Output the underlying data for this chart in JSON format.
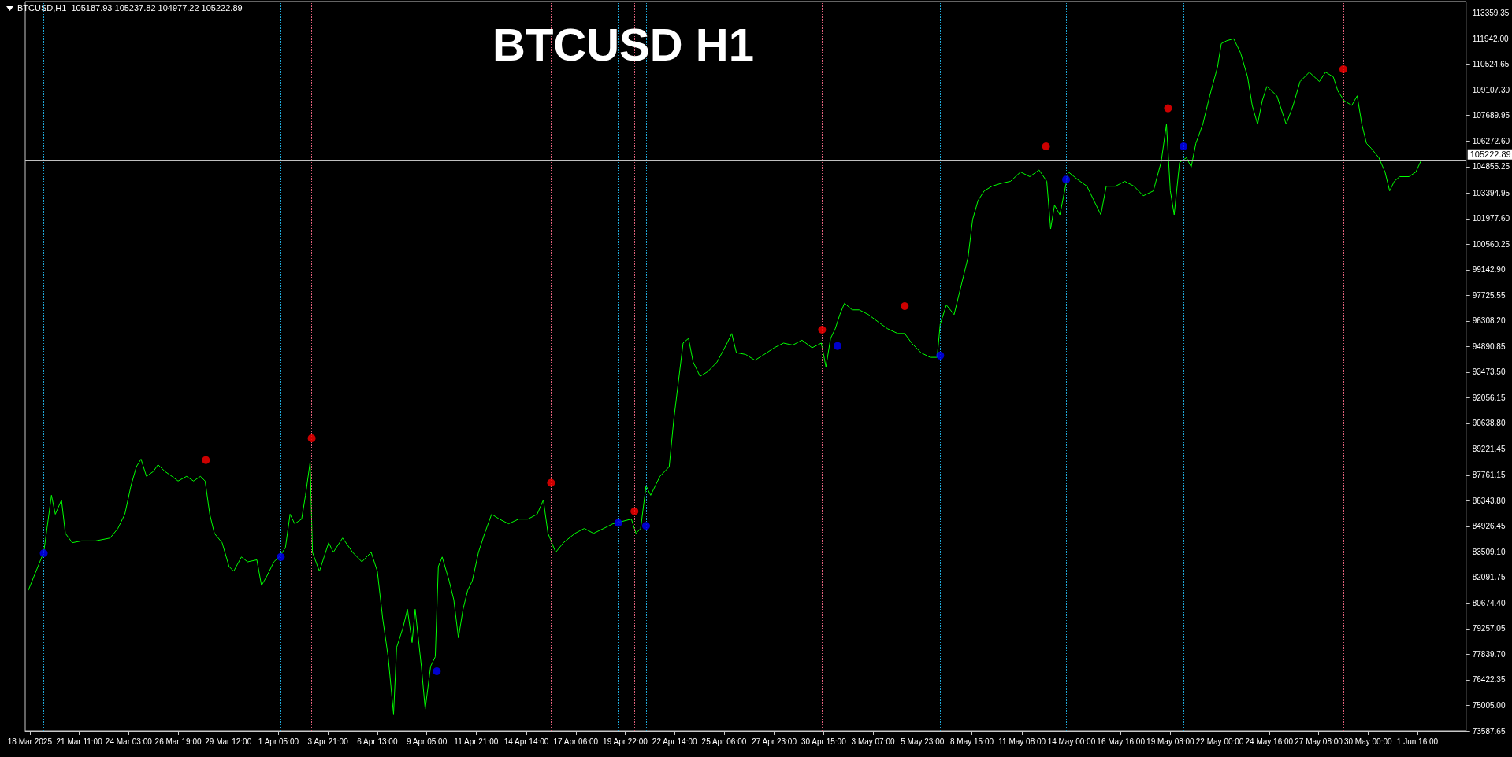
{
  "chart_data": {
    "type": "line",
    "title": "BTCUSD H1",
    "annotations": [
      "BTCUSD,H1  105187.93 105237.82 104977.22 105222.89"
    ],
    "xlim": [
      "2025-03-18T13:00",
      "2025-06-04T07:00"
    ],
    "xticks": [
      {
        "value": "2025-03-18T19:00",
        "label": "18 Mar 2025"
      },
      {
        "value": "2025-03-21T11:00",
        "label": "21 Mar 11:00"
      },
      {
        "value": "2025-03-24T03:00",
        "label": "24 Mar 03:00"
      },
      {
        "value": "2025-03-26T19:00",
        "label": "26 Mar 19:00"
      },
      {
        "value": "2025-03-29T12:00",
        "label": "29 Mar 12:00"
      },
      {
        "value": "2025-04-01T05:00",
        "label": "1 Apr 05:00"
      },
      {
        "value": "2025-04-03T21:00",
        "label": "3 Apr 21:00"
      },
      {
        "value": "2025-04-06T13:00",
        "label": "6 Apr 13:00"
      },
      {
        "value": "2025-04-09T05:00",
        "label": "9 Apr 05:00"
      },
      {
        "value": "2025-04-11T21:00",
        "label": "11 Apr 21:00"
      },
      {
        "value": "2025-04-14T14:00",
        "label": "14 Apr 14:00"
      },
      {
        "value": "2025-04-17T06:00",
        "label": "17 Apr 06:00"
      },
      {
        "value": "2025-04-19T22:00",
        "label": "19 Apr 22:00"
      },
      {
        "value": "2025-04-22T14:00",
        "label": "22 Apr 14:00"
      },
      {
        "value": "2025-04-25T06:00",
        "label": "25 Apr 06:00"
      },
      {
        "value": "2025-04-27T23:00",
        "label": "27 Apr 23:00"
      },
      {
        "value": "2025-04-30T15:00",
        "label": "30 Apr 15:00"
      },
      {
        "value": "2025-05-03T07:00",
        "label": "3 May 07:00"
      },
      {
        "value": "2025-05-05T23:00",
        "label": "5 May 23:00"
      },
      {
        "value": "2025-05-08T15:00",
        "label": "8 May 15:00"
      },
      {
        "value": "2025-05-11T08:00",
        "label": "11 May 08:00"
      },
      {
        "value": "2025-05-14T00:00",
        "label": "14 May 00:00"
      },
      {
        "value": "2025-05-16T16:00",
        "label": "16 May 16:00"
      },
      {
        "value": "2025-05-19T08:00",
        "label": "19 May 08:00"
      },
      {
        "value": "2025-05-22T00:00",
        "label": "22 May 00:00"
      },
      {
        "value": "2025-05-24T16:00",
        "label": "24 May 16:00"
      },
      {
        "value": "2025-05-27T08:00",
        "label": "27 May 08:00"
      },
      {
        "value": "2025-05-30T00:00",
        "label": "30 May 00:00"
      },
      {
        "value": "2025-06-01T16:00",
        "label": "1 Jun 16:00"
      }
    ],
    "ylim": [
      73587.65,
      114000
    ],
    "yticks": [
      {
        "value": 73587.65,
        "label": "73587.65"
      },
      {
        "value": 75005,
        "label": "75005.00"
      },
      {
        "value": 76422.35,
        "label": "76422.35"
      },
      {
        "value": 77839.7,
        "label": "77839.70"
      },
      {
        "value": 79257.05,
        "label": "79257.05"
      },
      {
        "value": 80674.4,
        "label": "80674.40"
      },
      {
        "value": 82091.75,
        "label": "82091.75"
      },
      {
        "value": 83509.1,
        "label": "83509.10"
      },
      {
        "value": 84926.45,
        "label": "84926.45"
      },
      {
        "value": 86343.8,
        "label": "86343.80"
      },
      {
        "value": 87761.15,
        "label": "87761.15"
      },
      {
        "value": 89221.45,
        "label": "89221.45"
      },
      {
        "value": 90638.8,
        "label": "90638.80"
      },
      {
        "value": 92056.15,
        "label": "92056.15"
      },
      {
        "value": 93473.5,
        "label": "93473.50"
      },
      {
        "value": 94890.85,
        "label": "94890.85"
      },
      {
        "value": 96308.2,
        "label": "96308.20"
      },
      {
        "value": 97725.55,
        "label": "97725.55"
      },
      {
        "value": 99142.9,
        "label": "99142.90"
      },
      {
        "value": 100560.25,
        "label": "100560.25"
      },
      {
        "value": 101977.6,
        "label": "101977.60"
      },
      {
        "value": 103394.95,
        "label": "103394.95"
      },
      {
        "value": 104855.25,
        "label": "104855.25"
      },
      {
        "value": 106272.6,
        "label": "106272.60"
      },
      {
        "value": 107689.95,
        "label": "107689.95"
      },
      {
        "value": 109107.3,
        "label": "109107.30"
      },
      {
        "value": 110524.65,
        "label": "110524.65"
      },
      {
        "value": 111942,
        "label": "111942.00"
      },
      {
        "value": 113359.35,
        "label": "113359.35"
      }
    ],
    "grid": false,
    "ref_lines": [
      {
        "axis": "y",
        "value": 105222.89,
        "label": "105222.89",
        "color": "#c0c0c0",
        "line_style": "solid"
      },
      {
        "axis": "x",
        "value": "2025-03-28T07:00",
        "color": "#e0607a",
        "line_style": "dotted"
      },
      {
        "axis": "x",
        "value": "2025-04-03T00:00",
        "color": "#e0607a",
        "line_style": "dotted"
      },
      {
        "axis": "x",
        "value": "2025-04-15T22:00",
        "color": "#e0607a",
        "line_style": "dotted"
      },
      {
        "axis": "x",
        "value": "2025-04-20T10:00",
        "color": "#e0607a",
        "line_style": "dotted"
      },
      {
        "axis": "x",
        "value": "2025-04-30T13:00",
        "color": "#e0607a",
        "line_style": "dotted"
      },
      {
        "axis": "x",
        "value": "2025-05-05T00:00",
        "color": "#e0607a",
        "line_style": "dotted"
      },
      {
        "axis": "x",
        "value": "2025-05-12T15:00",
        "color": "#e0607a",
        "line_style": "dotted"
      },
      {
        "axis": "x",
        "value": "2025-05-19T05:00",
        "color": "#e0607a",
        "line_style": "dotted"
      },
      {
        "axis": "x",
        "value": "2025-05-28T16:00",
        "color": "#e0607a",
        "line_style": "dotted"
      },
      {
        "axis": "x",
        "value": "2025-03-19T13:00",
        "color": "#1ea8d8",
        "line_style": "dotted"
      },
      {
        "axis": "x",
        "value": "2025-04-01T08:00",
        "color": "#1ea8d8",
        "line_style": "dotted"
      },
      {
        "axis": "x",
        "value": "2025-04-09T18:00",
        "color": "#1ea8d8",
        "line_style": "dotted"
      },
      {
        "axis": "x",
        "value": "2025-04-19T13:00",
        "color": "#1ea8d8",
        "line_style": "dotted"
      },
      {
        "axis": "x",
        "value": "2025-04-21T01:00",
        "color": "#1ea8d8",
        "line_style": "dotted"
      },
      {
        "axis": "x",
        "value": "2025-05-01T09:00",
        "color": "#1ea8d8",
        "line_style": "dotted"
      },
      {
        "axis": "x",
        "value": "2025-05-06T22:00",
        "color": "#1ea8d8",
        "line_style": "dotted"
      },
      {
        "axis": "x",
        "value": "2025-05-13T17:00",
        "color": "#1ea8d8",
        "line_style": "dotted"
      },
      {
        "axis": "x",
        "value": "2025-05-20T01:00",
        "color": "#1ea8d8",
        "line_style": "dotted"
      }
    ],
    "series": [
      {
        "type": "line",
        "color": "#00ff00",
        "x": [
          "2025-03-18T17:00",
          "2025-03-19T03:00",
          "2025-03-19T13:00",
          "2025-03-19T23:00",
          "2025-03-20T04:00",
          "2025-03-20T12:00",
          "2025-03-20T17:00",
          "2025-03-21T02:00",
          "2025-03-21T14:00",
          "2025-03-22T08:00",
          "2025-03-23T03:00",
          "2025-03-23T13:00",
          "2025-03-23T22:00",
          "2025-03-24T06:00",
          "2025-03-24T13:00",
          "2025-03-24T19:00",
          "2025-03-25T02:00",
          "2025-03-25T11:00",
          "2025-03-25T17:00",
          "2025-03-26T02:00",
          "2025-03-26T11:00",
          "2025-03-26T19:00",
          "2025-03-27T06:00",
          "2025-03-27T15:00",
          "2025-03-28T00:00",
          "2025-03-28T06:00",
          "2025-03-28T12:00",
          "2025-03-28T18:00",
          "2025-03-29T04:00",
          "2025-03-29T13:00",
          "2025-03-29T19:00",
          "2025-03-30T05:00",
          "2025-03-30T13:00",
          "2025-03-31T01:00",
          "2025-03-31T07:00",
          "2025-03-31T14:00",
          "2025-03-31T23:00",
          "2025-04-01T06:00",
          "2025-04-01T14:00",
          "2025-04-01T20:00",
          "2025-04-02T02:00",
          "2025-04-02T11:00",
          "2025-04-02T16:00",
          "2025-04-02T22:00",
          "2025-04-03T01:00",
          "2025-04-03T10:00",
          "2025-04-03T16:00",
          "2025-04-03T22:00",
          "2025-04-04T04:00",
          "2025-04-04T16:00",
          "2025-04-05T05:00",
          "2025-04-05T17:00",
          "2025-04-06T05:00",
          "2025-04-06T13:00",
          "2025-04-06T20:00",
          "2025-04-07T03:00",
          "2025-04-07T10:00",
          "2025-04-07T14:00",
          "2025-04-07T22:00",
          "2025-04-08T04:00",
          "2025-04-08T10:00",
          "2025-04-08T14:00",
          "2025-04-08T22:00",
          "2025-04-09T03:00",
          "2025-04-09T10:00",
          "2025-04-09T16:00",
          "2025-04-09T20:00",
          "2025-04-10T01:00",
          "2025-04-10T10:00",
          "2025-04-10T16:00",
          "2025-04-10T22:00",
          "2025-04-11T04:00",
          "2025-04-11T10:00",
          "2025-04-11T16:00",
          "2025-04-12T00:00",
          "2025-04-12T08:00",
          "2025-04-12T17:00",
          "2025-04-13T03:00",
          "2025-04-13T15:00",
          "2025-04-14T04:00",
          "2025-04-14T16:00",
          "2025-04-15T04:00",
          "2025-04-15T12:00",
          "2025-04-15T18:00",
          "2025-04-16T04:00",
          "2025-04-16T14:00",
          "2025-04-17T05:00",
          "2025-04-17T17:00",
          "2025-04-18T05:00",
          "2025-04-18T18:00",
          "2025-04-19T06:00",
          "2025-04-19T16:00",
          "2025-04-20T06:00",
          "2025-04-20T12:00",
          "2025-04-20T18:00",
          "2025-04-21T01:00",
          "2025-04-21T07:00",
          "2025-04-21T19:00",
          "2025-04-22T07:00",
          "2025-04-22T13:00",
          "2025-04-22T19:00",
          "2025-04-23T01:00",
          "2025-04-23T08:00",
          "2025-04-23T14:00",
          "2025-04-23T23:00",
          "2025-04-24T09:00",
          "2025-04-24T21:00",
          "2025-04-25T10:00",
          "2025-04-25T16:00",
          "2025-04-25T22:00",
          "2025-04-26T10:00",
          "2025-04-26T22:00",
          "2025-04-27T10:00",
          "2025-04-27T23:00",
          "2025-04-28T11:00",
          "2025-04-28T23:00",
          "2025-04-29T11:00",
          "2025-04-30T00:00",
          "2025-04-30T12:00",
          "2025-04-30T18:00",
          "2025-05-01T00:00",
          "2025-05-01T06:00",
          "2025-05-01T12:00",
          "2025-05-01T18:00",
          "2025-05-02T04:00",
          "2025-05-02T13:00",
          "2025-05-03T01:00",
          "2025-05-03T14:00",
          "2025-05-04T02:00",
          "2025-05-04T15:00",
          "2025-05-05T00:00",
          "2025-05-05T09:00",
          "2025-05-05T21:00",
          "2025-05-06T09:00",
          "2025-05-06T18:00",
          "2025-05-06T22:00",
          "2025-05-07T06:00",
          "2025-05-07T16:00",
          "2025-05-08T04:00",
          "2025-05-08T10:00",
          "2025-05-08T16:00",
          "2025-05-08T23:00",
          "2025-05-09T07:00",
          "2025-05-09T17:00",
          "2025-05-10T05:00",
          "2025-05-10T17:00",
          "2025-05-11T06:00",
          "2025-05-11T18:00",
          "2025-05-12T06:00",
          "2025-05-12T16:00",
          "2025-05-12T21:00",
          "2025-05-13T02:00",
          "2025-05-13T09:00",
          "2025-05-13T20:00",
          "2025-05-14T08:00",
          "2025-05-14T20:00",
          "2025-05-15T08:00",
          "2025-05-15T14:00",
          "2025-05-15T21:00",
          "2025-05-16T09:00",
          "2025-05-16T21:00",
          "2025-05-17T09:00",
          "2025-05-17T21:00",
          "2025-05-18T10:00",
          "2025-05-18T20:00",
          "2025-05-19T03:00",
          "2025-05-19T08:00",
          "2025-05-19T13:00",
          "2025-05-19T20:00",
          "2025-05-20T05:00",
          "2025-05-20T11:00",
          "2025-05-20T17:00",
          "2025-05-21T02:00",
          "2025-05-21T11:00",
          "2025-05-21T21:00",
          "2025-05-22T02:00",
          "2025-05-22T09:00",
          "2025-05-22T18:00",
          "2025-05-23T03:00",
          "2025-05-23T12:00",
          "2025-05-23T18:00",
          "2025-05-24T01:00",
          "2025-05-24T07:00",
          "2025-05-24T13:00",
          "2025-05-25T02:00",
          "2025-05-25T14:00",
          "2025-05-25T23:00",
          "2025-05-26T08:00",
          "2025-05-26T20:00",
          "2025-05-27T09:00",
          "2025-05-27T17:00",
          "2025-05-28T03:00",
          "2025-05-28T09:00",
          "2025-05-28T17:00",
          "2025-05-29T03:00",
          "2025-05-29T10:00",
          "2025-05-29T16:00",
          "2025-05-29T22:00",
          "2025-05-30T04:00",
          "2025-05-30T14:00",
          "2025-05-30T22:00",
          "2025-05-31T04:00",
          "2025-05-31T10:00",
          "2025-05-31T17:00",
          "2025-06-01T05:00",
          "2025-06-01T14:00",
          "2025-06-01T21:00"
        ],
        "values": [
          81380,
          82440,
          83490,
          86650,
          85600,
          86390,
          84540,
          84020,
          84120,
          84120,
          84280,
          84810,
          85600,
          87180,
          88230,
          88650,
          87700,
          87970,
          88340,
          87970,
          87700,
          87440,
          87700,
          87440,
          87700,
          87440,
          85600,
          84540,
          84020,
          82700,
          82440,
          83230,
          82960,
          83070,
          81650,
          82170,
          82960,
          83230,
          83750,
          85600,
          85070,
          85330,
          86650,
          88490,
          83490,
          82440,
          83230,
          84020,
          83490,
          84280,
          83490,
          82960,
          83490,
          82440,
          79800,
          77700,
          74530,
          78220,
          79280,
          80330,
          78490,
          80330,
          77170,
          74800,
          77170,
          77700,
          82700,
          83230,
          81910,
          80860,
          78750,
          80330,
          81380,
          81910,
          83490,
          84540,
          85600,
          85330,
          85070,
          85330,
          85330,
          85600,
          86390,
          84540,
          83490,
          84020,
          84540,
          84810,
          84540,
          84810,
          85070,
          85180,
          85330,
          84540,
          84810,
          87180,
          86650,
          87700,
          88230,
          90870,
          92970,
          95080,
          95340,
          94030,
          93240,
          93500,
          94030,
          95080,
          95610,
          94550,
          94450,
          94130,
          94450,
          94820,
          95080,
          94970,
          95240,
          94820,
          95080,
          93760,
          95340,
          95870,
          96660,
          97290,
          96920,
          96920,
          96660,
          96240,
          95870,
          95610,
          95610,
          95080,
          94550,
          94290,
          94290,
          96130,
          97190,
          96660,
          98770,
          99820,
          101930,
          102980,
          103510,
          103770,
          103930,
          104040,
          104560,
          104300,
          104670,
          104040,
          101400,
          102720,
          102190,
          104560,
          104140,
          103770,
          102720,
          102190,
          103770,
          103770,
          104040,
          103770,
          103240,
          103510,
          105090,
          107200,
          103510,
          102190,
          105090,
          105350,
          104830,
          106140,
          107200,
          108780,
          110360,
          111670,
          111830,
          111940,
          111150,
          109830,
          108250,
          107200,
          108510,
          109300,
          108780,
          107200,
          108250,
          109570,
          110090,
          109570,
          110090,
          109830,
          109040,
          108510,
          108250,
          108780,
          107200,
          106140,
          105880,
          105350,
          104560,
          103510,
          104040,
          104300,
          104300,
          104560,
          105220
        ]
      },
      {
        "type": "scatter",
        "color": "#ff0000",
        "x": [
          "2025-03-28T07:00",
          "2025-04-03T00:00",
          "2025-04-15T22:00",
          "2025-04-20T10:00",
          "2025-04-30T13:00",
          "2025-05-05T00:00",
          "2025-05-12T15:00",
          "2025-05-19T05:00",
          "2025-05-28T16:00"
        ],
        "values": [
          88600,
          89810,
          87340,
          85760,
          95820,
          97130,
          105980,
          108090,
          110250
        ]
      },
      {
        "type": "scatter",
        "color": "#0000ff",
        "x": [
          "2025-03-19T13:00",
          "2025-04-01T08:00",
          "2025-04-09T18:00",
          "2025-04-19T13:00",
          "2025-04-21T01:00",
          "2025-05-01T09:00",
          "2025-05-06T22:00",
          "2025-05-13T17:00",
          "2025-05-20T01:00"
        ],
        "values": [
          83440,
          83230,
          76900,
          85120,
          84960,
          94920,
          94390,
          104140,
          105980
        ]
      }
    ]
  }
}
